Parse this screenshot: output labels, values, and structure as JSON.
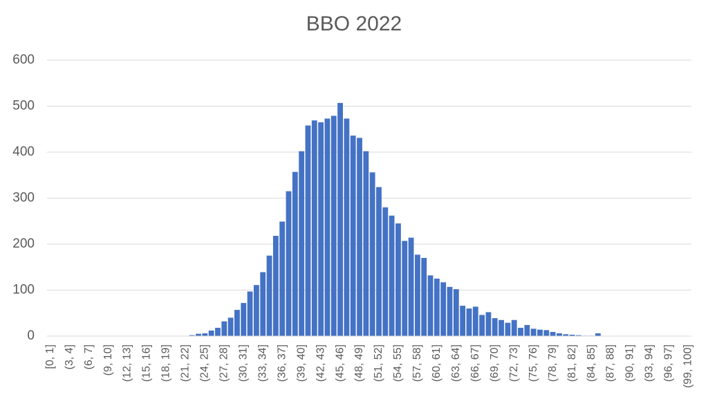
{
  "chart_data": {
    "type": "bar",
    "title": "BBO 2022",
    "categories": [
      "[0, 1]",
      null,
      null,
      "(3, 4]",
      null,
      null,
      "(6, 7]",
      null,
      null,
      "(9, 10]",
      null,
      null,
      "(12, 13]",
      null,
      null,
      "(15, 16]",
      null,
      null,
      "(18, 19]",
      null,
      null,
      "(21, 22]",
      null,
      null,
      "(24, 25]",
      null,
      null,
      "(27, 28]",
      null,
      null,
      "(30, 31]",
      null,
      null,
      "(33, 34]",
      null,
      null,
      "(36, 37]",
      null,
      null,
      "(39, 40]",
      null,
      null,
      "(42, 43]",
      null,
      null,
      "(45, 46]",
      null,
      null,
      "(48, 49]",
      null,
      null,
      "(51, 52]",
      null,
      null,
      "(54, 55]",
      null,
      null,
      "(57, 58]",
      null,
      null,
      "(60, 61]",
      null,
      null,
      "(63, 64]",
      null,
      null,
      "(66, 67]",
      null,
      null,
      "(69, 70]",
      null,
      null,
      "(72, 73]",
      null,
      null,
      "(75, 76]",
      null,
      null,
      "(78, 79]",
      null,
      null,
      "(81, 82]",
      null,
      null,
      "(84, 85]",
      null,
      null,
      "(87, 88]",
      null,
      null,
      "(90, 91]",
      null,
      null,
      "(93, 94]",
      null,
      null,
      "(96, 97]",
      null,
      null,
      "(99, 100]"
    ],
    "values": [
      0,
      0,
      0,
      0,
      0,
      0,
      0,
      0,
      0,
      0,
      0,
      0,
      0,
      0,
      0,
      0,
      0,
      0,
      0,
      0,
      0,
      0,
      2,
      5,
      6,
      12,
      18,
      32,
      40,
      57,
      72,
      97,
      111,
      139,
      175,
      218,
      249,
      315,
      357,
      402,
      458,
      469,
      465,
      473,
      479,
      507,
      473,
      436,
      431,
      402,
      356,
      324,
      280,
      262,
      245,
      207,
      214,
      177,
      170,
      132,
      125,
      117,
      107,
      102,
      66,
      60,
      64,
      46,
      52,
      39,
      35,
      29,
      35,
      18,
      24,
      16,
      14,
      13,
      9,
      6,
      4,
      3,
      2,
      1,
      1,
      6,
      0,
      0,
      0,
      0,
      0,
      0,
      0,
      0,
      0,
      0,
      0,
      0,
      0,
      0
    ],
    "color": "#4472c4",
    "ylim": [
      0,
      600
    ],
    "yticks": [
      0,
      100,
      200,
      300,
      400,
      500,
      600
    ],
    "grid": true
  }
}
